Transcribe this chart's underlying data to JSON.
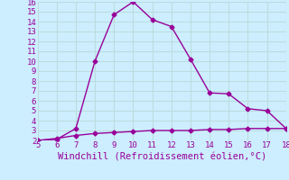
{
  "x": [
    5,
    6,
    7,
    8,
    9,
    10,
    11,
    12,
    13,
    14,
    15,
    16,
    17,
    18
  ],
  "y_upper": [
    2.0,
    2.1,
    3.2,
    10.0,
    14.7,
    16.0,
    14.2,
    13.5,
    10.2,
    6.8,
    6.7,
    5.2,
    5.0,
    3.2
  ],
  "y_lower": [
    2.0,
    2.2,
    2.5,
    2.7,
    2.8,
    2.9,
    3.0,
    3.0,
    3.0,
    3.1,
    3.1,
    3.2,
    3.2,
    3.2
  ],
  "line_color": "#990099",
  "bg_color": "#cceeff",
  "grid_color": "#bbdddd",
  "xlabel": "Windchill (Refroidissement éolien,°C)",
  "xlim": [
    5,
    18
  ],
  "ylim": [
    2,
    16
  ],
  "yticks": [
    2,
    3,
    4,
    5,
    6,
    7,
    8,
    9,
    10,
    11,
    12,
    13,
    14,
    15,
    16
  ],
  "xticks": [
    5,
    6,
    7,
    8,
    9,
    10,
    11,
    12,
    13,
    14,
    15,
    16,
    17,
    18
  ],
  "marker": "D",
  "markersize": 2.5,
  "linewidth": 1.0,
  "xlabel_color": "#990099",
  "tick_color": "#990099",
  "tick_fontsize": 6.5,
  "xlabel_fontsize": 7.5
}
